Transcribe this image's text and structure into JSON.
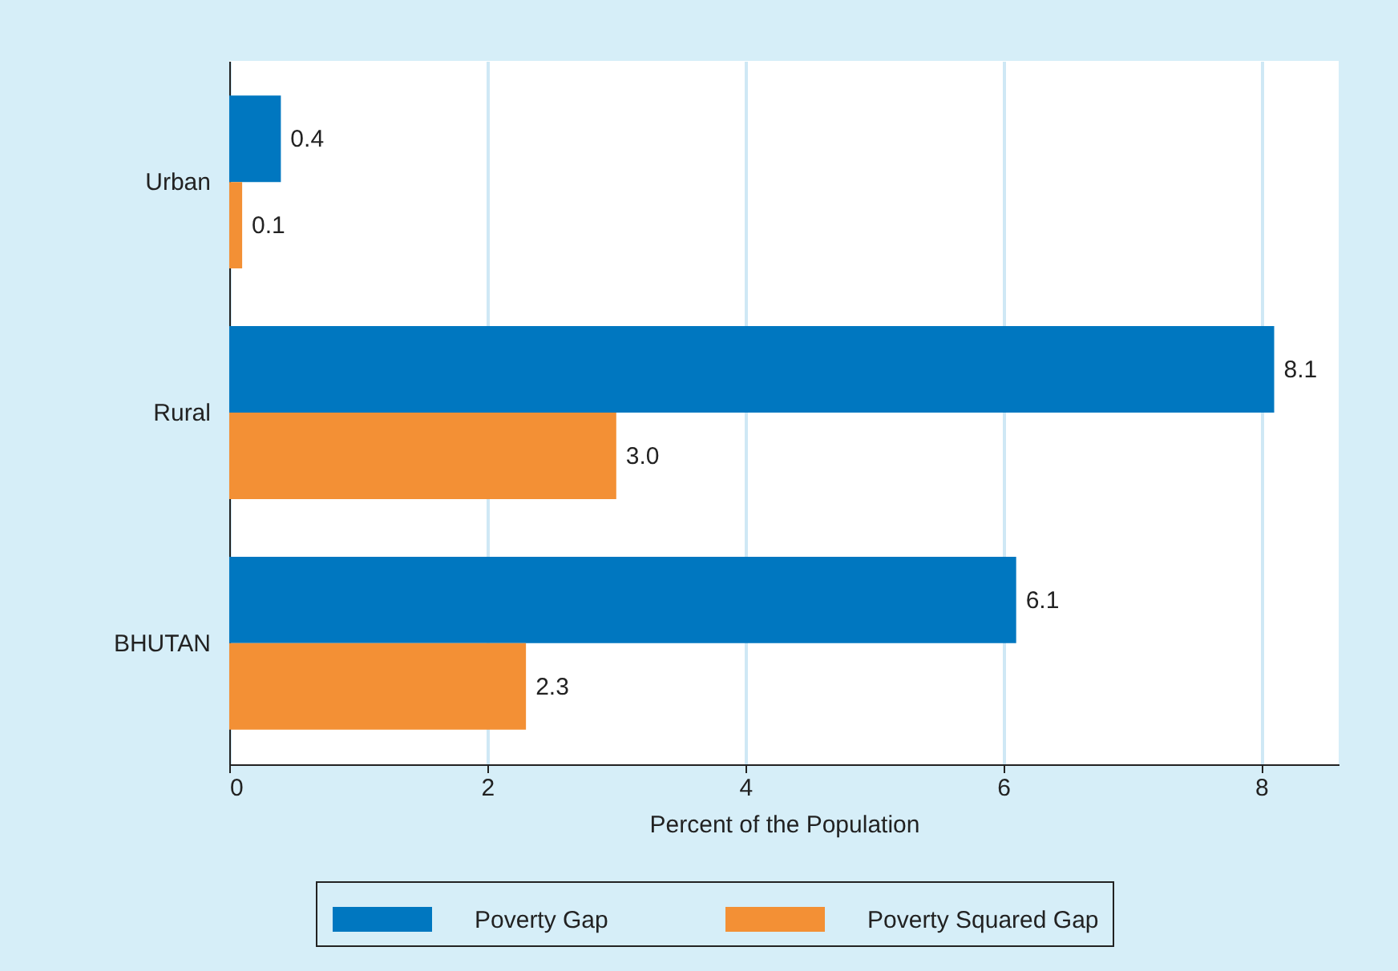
{
  "chart_data": {
    "type": "bar",
    "orientation": "horizontal",
    "xlabel": "Percent of the Population",
    "categories": [
      "Urban",
      "Rural",
      "BHUTAN"
    ],
    "series": [
      {
        "name": "Poverty Gap",
        "color": "#0077c0",
        "values": [
          0.4,
          8.1,
          6.1
        ],
        "value_labels": [
          "0.4",
          "8.1",
          "6.1"
        ]
      },
      {
        "name": "Poverty Squared Gap",
        "color": "#f39035",
        "values": [
          0.1,
          3.0,
          2.3
        ],
        "value_labels": [
          "0.1",
          "3.0",
          "2.3"
        ]
      }
    ],
    "xlim": [
      0,
      8.6
    ],
    "xticks": [
      0,
      2,
      4,
      6,
      8
    ],
    "grid": "x",
    "legend": "bottom"
  }
}
